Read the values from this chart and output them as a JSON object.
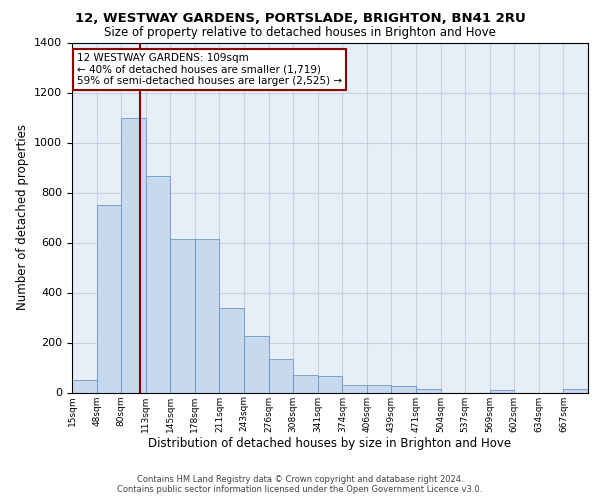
{
  "title": "12, WESTWAY GARDENS, PORTSLADE, BRIGHTON, BN41 2RU",
  "subtitle": "Size of property relative to detached houses in Brighton and Hove",
  "xlabel": "Distribution of detached houses by size in Brighton and Hove",
  "ylabel": "Number of detached properties",
  "footer_line1": "Contains HM Land Registry data © Crown copyright and database right 2024.",
  "footer_line2": "Contains public sector information licensed under the Open Government Licence v3.0.",
  "annotation_line1": "12 WESTWAY GARDENS: 109sqm",
  "annotation_line2": "← 40% of detached houses are smaller (1,719)",
  "annotation_line3": "59% of semi-detached houses are larger (2,525) →",
  "property_size_idx": 2.75,
  "bar_color": "#c8d8ed",
  "bar_edge_color": "#6699cc",
  "vline_color": "#8b0000",
  "annotation_box_color": "#8b0000",
  "grid_color": "#c8d0e0",
  "background_color": "#e8eef8",
  "categories": [
    "15sqm",
    "48sqm",
    "80sqm",
    "113sqm",
    "145sqm",
    "178sqm",
    "211sqm",
    "243sqm",
    "276sqm",
    "308sqm",
    "341sqm",
    "374sqm",
    "406sqm",
    "439sqm",
    "471sqm",
    "504sqm",
    "537sqm",
    "569sqm",
    "602sqm",
    "634sqm",
    "667sqm"
  ],
  "values": [
    50,
    750,
    1100,
    865,
    615,
    615,
    340,
    225,
    135,
    70,
    65,
    30,
    30,
    25,
    15,
    0,
    0,
    10,
    0,
    0,
    15
  ],
  "ylim": [
    0,
    1400
  ],
  "yticks": [
    0,
    200,
    400,
    600,
    800,
    1000,
    1200,
    1400
  ]
}
